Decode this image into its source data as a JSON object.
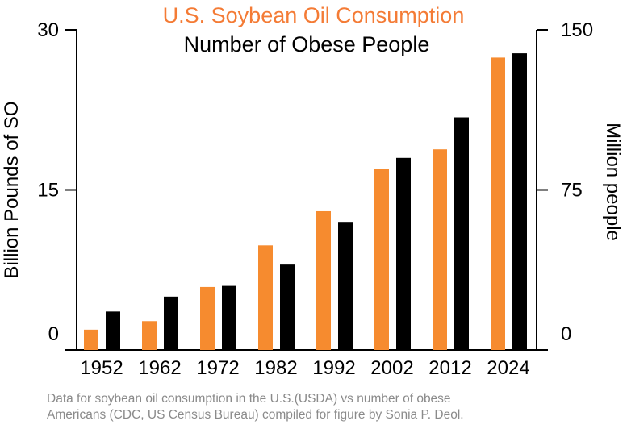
{
  "chart_data": {
    "type": "bar",
    "title": "U.S. Soybean Oil Consumption",
    "subtitle": "Number of Obese People",
    "categories": [
      "1952",
      "1962",
      "1972",
      "1982",
      "1992",
      "2002",
      "2012",
      "2024"
    ],
    "series": [
      {
        "name": "U.S. Soybean Oil Consumption",
        "axis": "left",
        "color": "#f68b2f",
        "values": [
          1.9,
          2.7,
          5.9,
          9.8,
          13.0,
          17.0,
          18.8,
          27.4
        ]
      },
      {
        "name": "Number of Obese People",
        "axis": "right",
        "color": "#000000",
        "values": [
          18,
          25,
          30,
          40,
          60,
          90,
          109,
          139
        ]
      }
    ],
    "ylabel": "Billion Pounds of SO",
    "y2label": "Million people",
    "ylim": [
      0,
      30
    ],
    "y2lim": [
      0,
      150
    ],
    "yticks": [
      "0",
      "15",
      "30"
    ],
    "y2ticks": [
      "0",
      "75",
      "150"
    ],
    "grid": false,
    "title_color": "#f47b35"
  },
  "footnote": {
    "line1": "Data for soybean oil consumption in the U.S.(USDA) vs number of obese",
    "line2": "Americans (CDC, US Census Bureau) compiled for figure by Sonia P. Deol."
  }
}
